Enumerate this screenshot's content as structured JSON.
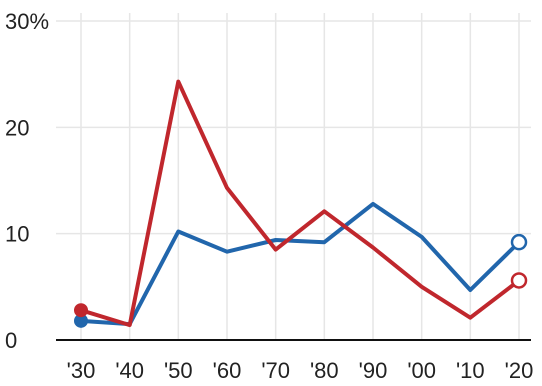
{
  "chart_data": {
    "type": "line",
    "x": [
      "'30",
      "'40",
      "'50",
      "'60",
      "'70",
      "'80",
      "'90",
      "'00",
      "'10",
      "'20"
    ],
    "y_ticks": [
      "0",
      "10",
      "20",
      "30%"
    ],
    "ylim": [
      0,
      30
    ],
    "grid": "vertical and horizontal",
    "series": [
      {
        "color": "#2166ac",
        "values": [
          1.8,
          1.5,
          10.2,
          8.3,
          9.4,
          9.2,
          12.8,
          9.7,
          4.7,
          9.2
        ],
        "start_marker": "filled",
        "end_marker": "hollow"
      },
      {
        "color": "#c0272d",
        "values": [
          2.8,
          1.4,
          24.3,
          14.3,
          8.5,
          12.1,
          8.7,
          5.0,
          2.1,
          5.6
        ],
        "start_marker": "filled",
        "end_marker": "hollow"
      }
    ]
  }
}
